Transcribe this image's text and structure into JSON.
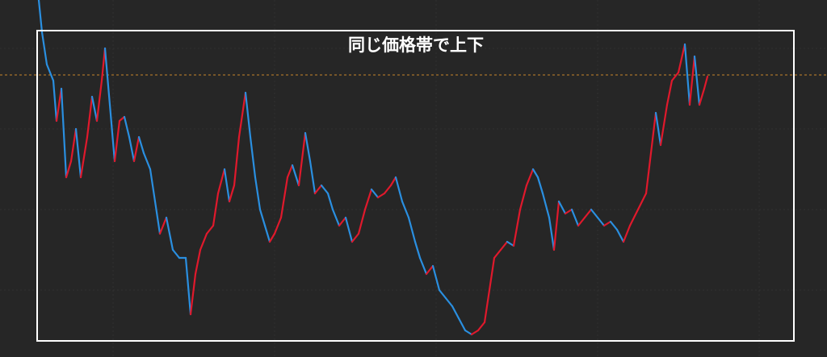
{
  "annotation": {
    "text": "同じ価格帯で上下"
  }
}
